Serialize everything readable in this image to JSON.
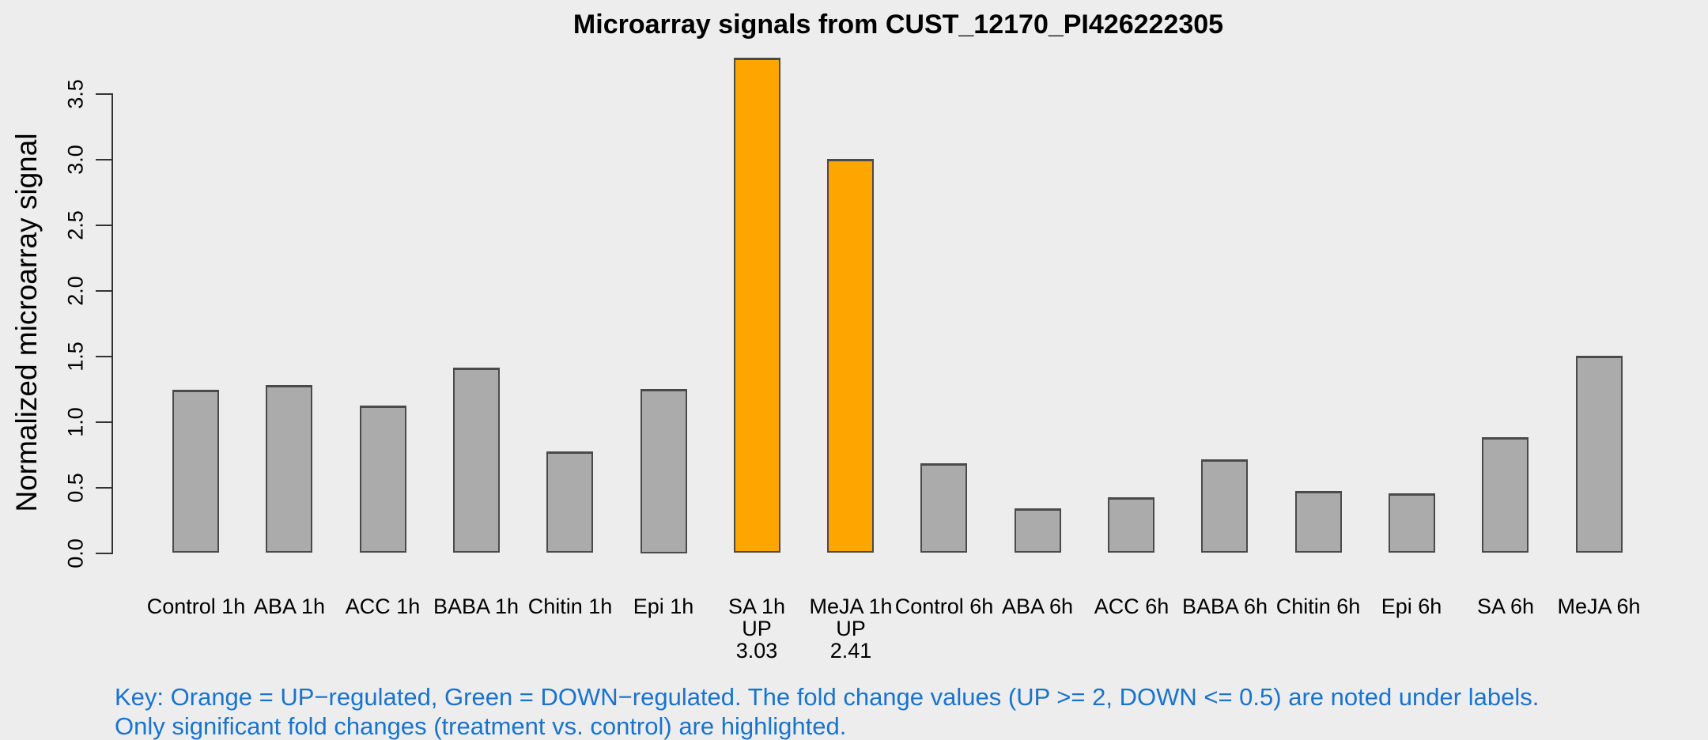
{
  "title": "Microarray signals from CUST_12170_PI426222305",
  "y_axis_label": "Normalized microarray signal",
  "key": {
    "line1": "Key: Orange = UP−regulated, Green = DOWN−regulated. The fold change values (UP >= 2, DOWN <= 0.5) are noted under labels.",
    "line2": "Only significant fold changes (treatment vs. control) are highlighted.",
    "text_color": "#1874CD"
  },
  "colors": {
    "background": "#EDEDED",
    "bar_border": "#4A4A4A",
    "axis": "#333333",
    "palette": {
      "gray": "#ABABAB",
      "orange": "#FFA500"
    }
  },
  "chart_data": {
    "type": "bar",
    "title": "Microarray signals from CUST_12170_PI426222305",
    "xlabel": "",
    "ylabel": "Normalized microarray signal",
    "ylim": [
      0,
      3.77
    ],
    "yticks": [
      "0.0",
      "0.5",
      "1.0",
      "1.5",
      "2.0",
      "2.5",
      "3.0",
      "3.5"
    ],
    "grid": false,
    "legend_position": "none",
    "categories": [
      "Control 1h",
      "ABA 1h",
      "ACC 1h",
      "BABA 1h",
      "Chitin 1h",
      "Epi 1h",
      "SA 1h",
      "MeJA 1h",
      "Control 6h",
      "ABA 6h",
      "ACC 6h",
      "BABA 6h",
      "Chitin 6h",
      "Epi 6h",
      "SA 6h",
      "MeJA 6h"
    ],
    "values": [
      1.24,
      1.28,
      1.12,
      1.41,
      0.77,
      1.25,
      3.77,
      3.0,
      0.68,
      0.34,
      0.42,
      0.71,
      0.47,
      0.45,
      0.88,
      1.5
    ],
    "bar_colors": [
      "gray",
      "gray",
      "gray",
      "gray",
      "gray",
      "gray",
      "orange",
      "orange",
      "gray",
      "gray",
      "gray",
      "gray",
      "gray",
      "gray",
      "gray",
      "gray"
    ],
    "annotations": [
      {
        "category": "SA 1h",
        "lines": [
          "UP",
          "3.03"
        ]
      },
      {
        "category": "MeJA 1h",
        "lines": [
          "UP",
          "2.41"
        ]
      }
    ]
  }
}
